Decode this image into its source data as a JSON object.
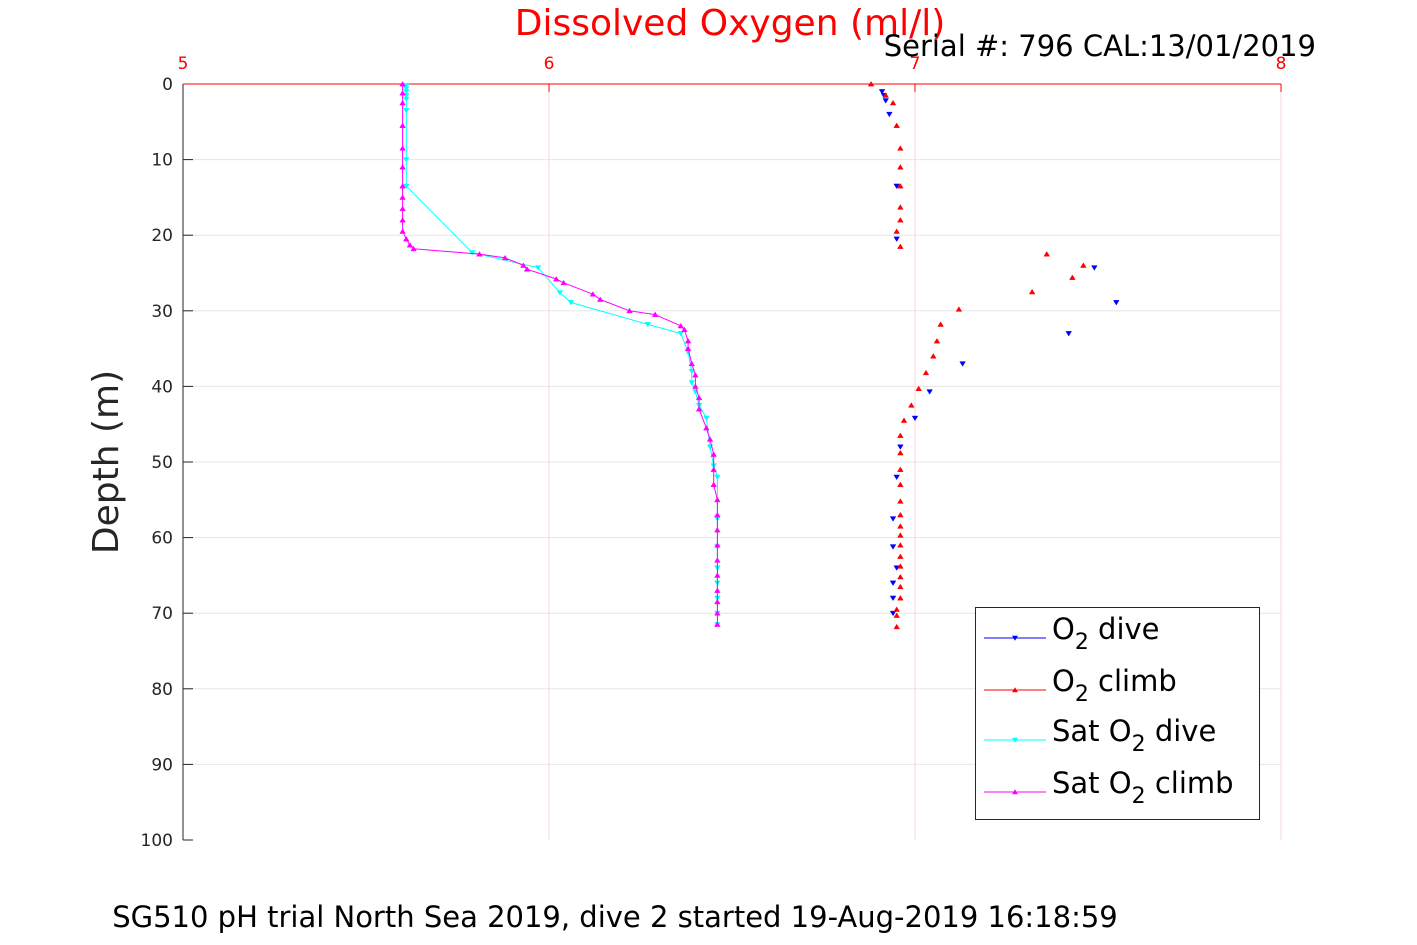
{
  "chart_data": {
    "type": "scatter",
    "title": "Dissolved Oxygen (ml/l)",
    "subtitle": "Serial #: 796  CAL:13/01/2019",
    "caption": "SG510 pH trial North Sea 2019, dive 2 started 19-Aug-2019 16:18:59",
    "xlabel": "",
    "ylabel": "Depth (m)",
    "xlim": [
      5,
      8
    ],
    "ylim": [
      0,
      100
    ],
    "y_reversed": true,
    "x_axis_location": "top",
    "xticks": [
      "5",
      "6",
      "7",
      "8"
    ],
    "yticks": [
      "0",
      "10",
      "20",
      "30",
      "40",
      "50",
      "60",
      "70",
      "80",
      "90",
      "100"
    ],
    "grid": true,
    "legend_position": "bottom-right",
    "colors": {
      "title": "#ff0000",
      "x_axis": "#ff0000",
      "axis_text": "#262626"
    },
    "legend": [
      {
        "pre": "O",
        "sub": "2",
        "post": " dive"
      },
      {
        "pre": "O",
        "sub": "2",
        "post": " climb"
      },
      {
        "pre": "Sat O",
        "sub": "2",
        "post": " dive"
      },
      {
        "pre": "Sat O",
        "sub": "2",
        "post": " climb"
      }
    ],
    "series": [
      {
        "color": "#0000ff",
        "marker": "triangle-down",
        "line": false,
        "points": [
          [
            6.91,
            1.0
          ],
          [
            6.915,
            1.5
          ],
          [
            6.92,
            2.2
          ],
          [
            6.93,
            4.0
          ],
          [
            6.95,
            13.5
          ],
          [
            6.95,
            20.5
          ],
          [
            7.49,
            24.3
          ],
          [
            7.55,
            28.9
          ],
          [
            7.42,
            33.0
          ],
          [
            7.13,
            37.0
          ],
          [
            7.04,
            40.7
          ],
          [
            7.0,
            44.2
          ],
          [
            6.96,
            48.0
          ],
          [
            6.95,
            52.0
          ],
          [
            6.94,
            57.5
          ],
          [
            6.94,
            61.2
          ],
          [
            6.95,
            64.0
          ],
          [
            6.94,
            66.0
          ],
          [
            6.94,
            68.0
          ],
          [
            6.94,
            70.0
          ]
        ]
      },
      {
        "color": "#ff0000",
        "marker": "triangle-up",
        "line": false,
        "points": [
          [
            6.88,
            0.0
          ],
          [
            6.92,
            1.5
          ],
          [
            6.94,
            2.5
          ],
          [
            6.95,
            5.5
          ],
          [
            6.96,
            8.5
          ],
          [
            6.96,
            11.0
          ],
          [
            6.96,
            13.5
          ],
          [
            6.96,
            16.3
          ],
          [
            6.96,
            18.0
          ],
          [
            6.95,
            19.5
          ],
          [
            6.96,
            21.5
          ],
          [
            7.36,
            22.5
          ],
          [
            7.43,
            25.6
          ],
          [
            7.46,
            24.0
          ],
          [
            7.32,
            27.5
          ],
          [
            7.12,
            29.8
          ],
          [
            7.07,
            31.8
          ],
          [
            7.06,
            34.0
          ],
          [
            7.05,
            36.0
          ],
          [
            7.03,
            38.2
          ],
          [
            7.01,
            40.3
          ],
          [
            6.99,
            42.5
          ],
          [
            6.97,
            44.5
          ],
          [
            6.96,
            46.5
          ],
          [
            6.96,
            48.8
          ],
          [
            6.96,
            51.0
          ],
          [
            6.96,
            53.0
          ],
          [
            6.96,
            55.2
          ],
          [
            6.96,
            57.0
          ],
          [
            6.96,
            58.5
          ],
          [
            6.96,
            59.7
          ],
          [
            6.96,
            61.0
          ],
          [
            6.96,
            62.5
          ],
          [
            6.96,
            63.8
          ],
          [
            6.96,
            65.2
          ],
          [
            6.96,
            66.5
          ],
          [
            6.96,
            68.0
          ],
          [
            6.95,
            69.5
          ],
          [
            6.95,
            70.3
          ],
          [
            6.95,
            71.8
          ]
        ]
      },
      {
        "color": "#00ffff",
        "marker": "triangle-down",
        "line": true,
        "points": [
          [
            5.61,
            0.2
          ],
          [
            5.61,
            0.6
          ],
          [
            5.61,
            1.0
          ],
          [
            5.61,
            1.5
          ],
          [
            5.61,
            2.0
          ],
          [
            5.61,
            3.5
          ],
          [
            5.61,
            10.0
          ],
          [
            5.61,
            13.5
          ],
          [
            5.79,
            22.3
          ],
          [
            5.97,
            24.3
          ],
          [
            6.03,
            27.6
          ],
          [
            6.06,
            28.9
          ],
          [
            6.27,
            31.8
          ],
          [
            6.36,
            33.0
          ],
          [
            6.38,
            35.5
          ],
          [
            6.39,
            38.0
          ],
          [
            6.39,
            39.5
          ],
          [
            6.4,
            40.7
          ],
          [
            6.41,
            42.5
          ],
          [
            6.43,
            44.2
          ],
          [
            6.44,
            48.0
          ],
          [
            6.45,
            50.5
          ],
          [
            6.46,
            52.0
          ],
          [
            6.46,
            57.5
          ],
          [
            6.46,
            61.2
          ],
          [
            6.46,
            64.0
          ],
          [
            6.46,
            66.0
          ],
          [
            6.46,
            68.0
          ],
          [
            6.46,
            70.0
          ],
          [
            6.46,
            71.5
          ]
        ]
      },
      {
        "color": "#ff00ff",
        "marker": "triangle-up",
        "line": true,
        "points": [
          [
            5.6,
            0.0
          ],
          [
            5.6,
            1.2
          ],
          [
            5.6,
            2.5
          ],
          [
            5.6,
            5.5
          ],
          [
            5.6,
            8.5
          ],
          [
            5.6,
            11.0
          ],
          [
            5.6,
            13.5
          ],
          [
            5.6,
            15.0
          ],
          [
            5.6,
            16.5
          ],
          [
            5.6,
            18.0
          ],
          [
            5.6,
            19.5
          ],
          [
            5.61,
            20.5
          ],
          [
            5.62,
            21.3
          ],
          [
            5.63,
            21.8
          ],
          [
            5.81,
            22.5
          ],
          [
            5.88,
            23.0
          ],
          [
            5.93,
            24.0
          ],
          [
            5.94,
            24.5
          ],
          [
            6.02,
            25.8
          ],
          [
            6.04,
            26.3
          ],
          [
            6.12,
            27.8
          ],
          [
            6.14,
            28.5
          ],
          [
            6.22,
            30.0
          ],
          [
            6.29,
            30.5
          ],
          [
            6.36,
            32.0
          ],
          [
            6.37,
            32.5
          ],
          [
            6.38,
            34.0
          ],
          [
            6.38,
            35.0
          ],
          [
            6.39,
            37.0
          ],
          [
            6.4,
            38.5
          ],
          [
            6.4,
            40.0
          ],
          [
            6.41,
            41.5
          ],
          [
            6.41,
            43.0
          ],
          [
            6.43,
            45.5
          ],
          [
            6.44,
            47.0
          ],
          [
            6.45,
            49.0
          ],
          [
            6.45,
            51.0
          ],
          [
            6.45,
            53.0
          ],
          [
            6.46,
            55.0
          ],
          [
            6.46,
            57.0
          ],
          [
            6.46,
            59.0
          ],
          [
            6.46,
            61.0
          ],
          [
            6.46,
            63.0
          ],
          [
            6.46,
            65.0
          ],
          [
            6.46,
            67.0
          ],
          [
            6.46,
            68.5
          ],
          [
            6.46,
            70.0
          ],
          [
            6.46,
            71.5
          ]
        ]
      }
    ]
  }
}
